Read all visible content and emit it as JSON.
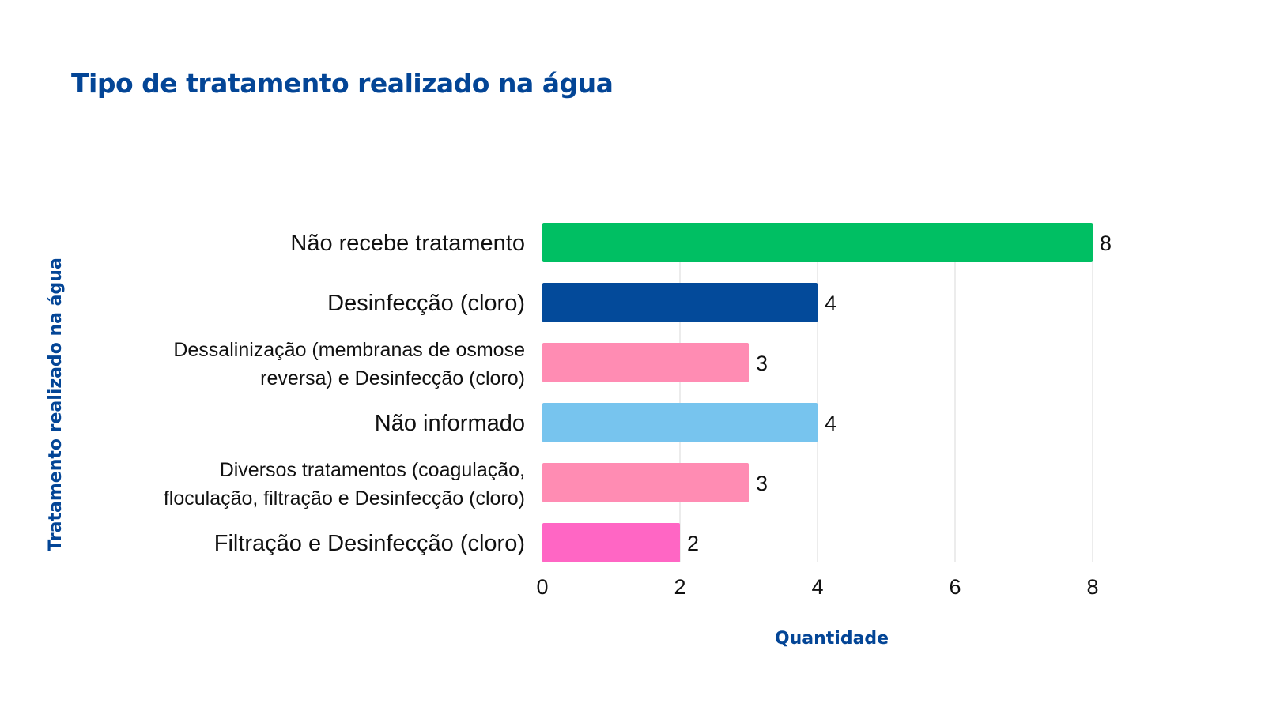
{
  "chart_data": {
    "type": "bar",
    "orientation": "horizontal",
    "title": "Tipo de tratamento realizado na água",
    "xlabel": "Quantidade",
    "ylabel": "Tratamento realizado na água",
    "categories": [
      [
        "Não recebe tratamento"
      ],
      [
        "Desinfecção (cloro)"
      ],
      [
        "Dessalinização (membranas de osmose",
        "reversa) e Desinfecção (cloro)"
      ],
      [
        "Não informado"
      ],
      [
        "Diversos tratamentos (coagulação,",
        "floculação, filtração e Desinfecção (cloro)"
      ],
      [
        "Filtração e Desinfecção (cloro)"
      ]
    ],
    "values": [
      8,
      4,
      3,
      4,
      3,
      2
    ],
    "colors": [
      "#00BF63",
      "#034A9A",
      "#FF8CB3",
      "#77C4EE",
      "#FF8CB3",
      "#FF66C4"
    ],
    "xlim": [
      0,
      8
    ],
    "xticks": [
      0,
      2,
      4,
      6,
      8
    ],
    "grid": "vertical",
    "legend": "none"
  }
}
